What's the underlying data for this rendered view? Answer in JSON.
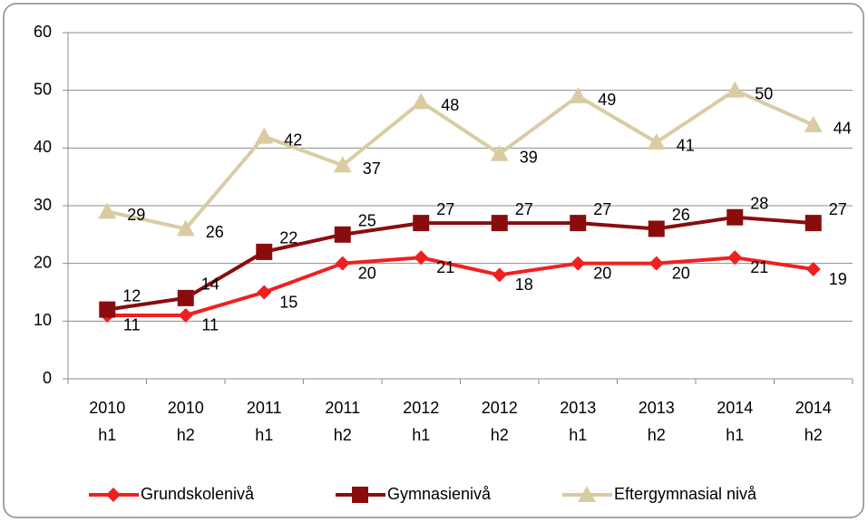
{
  "chart_data": {
    "type": "line",
    "categories": [
      [
        "2010",
        "h1"
      ],
      [
        "2010",
        "h2"
      ],
      [
        "2011",
        "h1"
      ],
      [
        "2011",
        "h2"
      ],
      [
        "2012",
        "h1"
      ],
      [
        "2012",
        "h2"
      ],
      [
        "2013",
        "h1"
      ],
      [
        "2013",
        "h2"
      ],
      [
        "2014",
        "h1"
      ],
      [
        "2014",
        "h2"
      ]
    ],
    "series": [
      {
        "name": "Grundskolenivå",
        "color": "#f02020",
        "marker": "diamond",
        "values": [
          11,
          11,
          15,
          20,
          21,
          18,
          20,
          20,
          21,
          19
        ]
      },
      {
        "name": "Gymnasienivå",
        "color": "#8b0c0c",
        "marker": "square",
        "values": [
          12,
          14,
          22,
          25,
          27,
          27,
          27,
          26,
          28,
          27
        ]
      },
      {
        "name": "Eftergymnasial nivå",
        "color": "#d9cca3",
        "marker": "triangle",
        "values": [
          29,
          26,
          42,
          37,
          48,
          39,
          49,
          41,
          50,
          44
        ]
      }
    ],
    "ylim": [
      0,
      60
    ],
    "yticks": [
      0,
      10,
      20,
      30,
      40,
      50,
      60
    ],
    "grid": true,
    "legend": "bottom"
  }
}
